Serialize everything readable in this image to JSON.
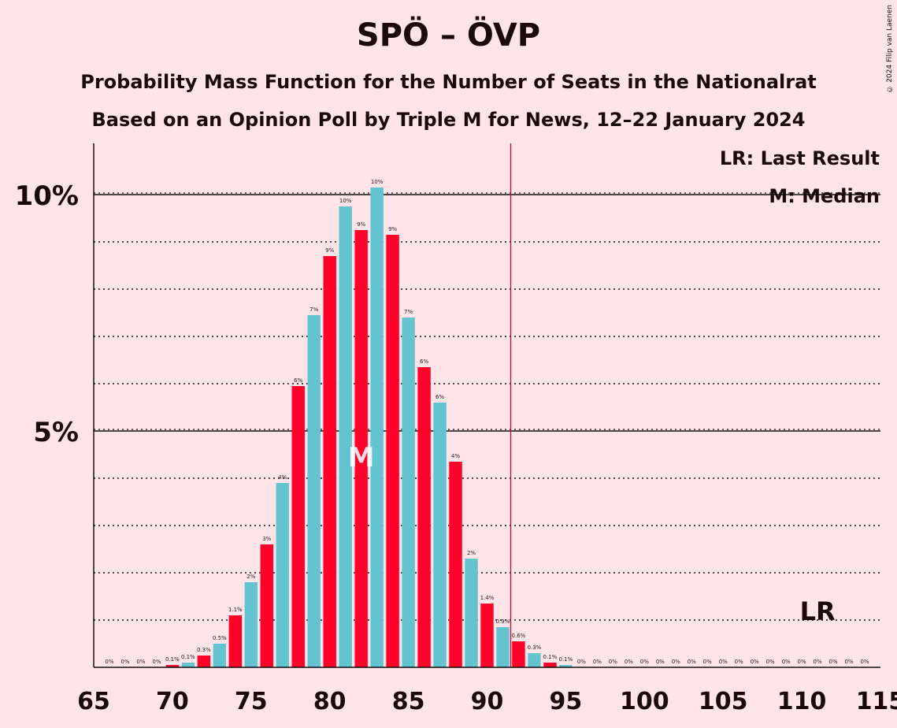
{
  "title": "SPÖ – ÖVP",
  "subtitle": "Probability Mass Function for the Number of Seats in the Nationalrat",
  "subtitle2": "Based on an Opinion Poll by Triple M for News, 12–22 January 2024",
  "copyright": "© 2024 Filip van Laenen",
  "legend": {
    "lr": "LR: Last Result",
    "median": "M: Median"
  },
  "markers": {
    "median_label": "M",
    "lr_label": "LR",
    "median_seat": 82,
    "last_result_seat": 111,
    "majority_seat": 92
  },
  "colors": {
    "background": "#FFE4E8",
    "spo": "#FF0028",
    "ovp": "#63C3D0",
    "majority_line": "#E0003C"
  },
  "chart_data": {
    "type": "bar",
    "xlim": [
      65,
      115
    ],
    "ylim": [
      0,
      11
    ],
    "x_ticks": [
      65,
      70,
      75,
      80,
      85,
      90,
      95,
      100,
      105,
      110,
      115
    ],
    "y_ticks": [
      {
        "value": 5,
        "label": "5%"
      },
      {
        "value": 10,
        "label": "10%"
      }
    ],
    "x": [
      66,
      67,
      68,
      69,
      70,
      71,
      72,
      73,
      74,
      75,
      76,
      77,
      78,
      79,
      80,
      81,
      82,
      83,
      84,
      85,
      86,
      87,
      88,
      89,
      90,
      91,
      92,
      93,
      94,
      95,
      96,
      97,
      98,
      99,
      100,
      101,
      102,
      103,
      104,
      105,
      106,
      107,
      108,
      109,
      110,
      111,
      112,
      113,
      114
    ],
    "values": [
      0,
      0,
      0,
      0,
      0.05,
      0.1,
      0.25,
      0.5,
      1.1,
      1.8,
      2.6,
      3.9,
      5.95,
      7.45,
      8.7,
      9.75,
      9.25,
      10.15,
      9.15,
      7.4,
      6.35,
      5.6,
      4.35,
      2.3,
      1.35,
      0.85,
      0.55,
      0.3,
      0.1,
      0.05,
      0,
      0,
      0,
      0,
      0,
      0,
      0,
      0,
      0,
      0,
      0,
      0,
      0,
      0,
      0,
      0,
      0,
      0,
      0
    ],
    "labels": [
      "0%",
      "0%",
      "0%",
      "0%",
      "0.1%",
      "0.1%",
      "0.3%",
      "0.5%",
      "1.1%",
      "2%",
      "3%",
      "4%",
      "6%",
      "7%",
      "9%",
      "10%",
      "9%",
      "10%",
      "9%",
      "7%",
      "6%",
      "6%",
      "4%",
      "2%",
      "1.4%",
      "0.9%",
      "0.6%",
      "0.3%",
      "0.1%",
      "0.1%",
      "0%",
      "0%",
      "0%",
      "0%",
      "0%",
      "0%",
      "0%",
      "0%",
      "0%",
      "0%",
      "0%",
      "0%",
      "0%",
      "0%",
      "0%",
      "0%",
      "0%",
      "0%",
      "0%"
    ]
  }
}
